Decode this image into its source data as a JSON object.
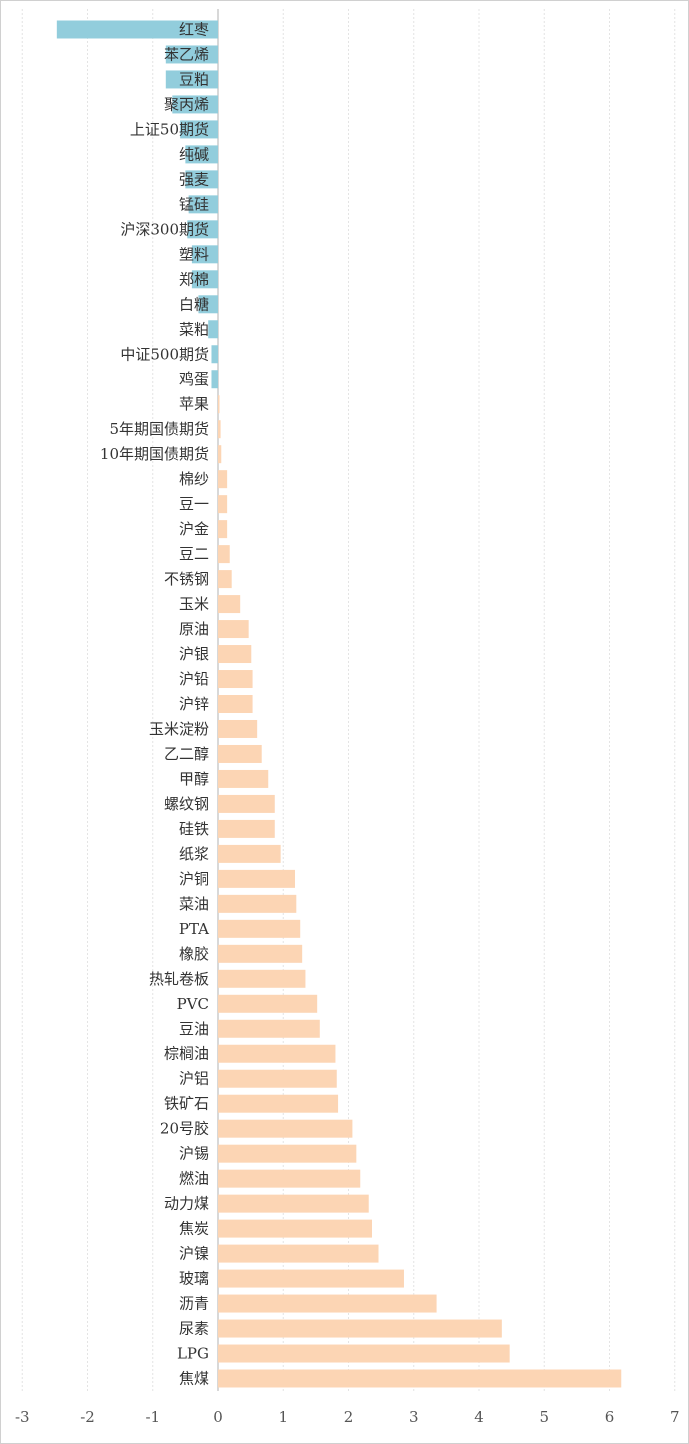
{
  "chart_data": {
    "type": "bar",
    "orientation": "horizontal",
    "categories": [
      "红枣",
      "苯乙烯",
      "豆粕",
      "聚丙烯",
      "上证50期货",
      "纯碱",
      "强麦",
      "锰硅",
      "沪深300期货",
      "塑料",
      "郑棉",
      "白糖",
      "菜粕",
      "中证500期货",
      "鸡蛋",
      "苹果",
      "5年期国债期货",
      "10年期国债期货",
      "棉纱",
      "豆一",
      "沪金",
      "豆二",
      "不锈钢",
      "玉米",
      "原油",
      "沪银",
      "沪铅",
      "沪锌",
      "玉米淀粉",
      "乙二醇",
      "甲醇",
      "螺纹钢",
      "硅铁",
      "纸浆",
      "沪铜",
      "菜油",
      "PTA",
      "橡胶",
      "热轧卷板",
      "PVC",
      "豆油",
      "棕榈油",
      "沪铝",
      "铁矿石",
      "20号胶",
      "沪锡",
      "燃油",
      "动力煤",
      "焦炭",
      "沪镍",
      "玻璃",
      "沥青",
      "尿素",
      "LPG",
      "焦煤"
    ],
    "values": [
      -2.47,
      -0.8,
      -0.8,
      -0.7,
      -0.58,
      -0.5,
      -0.5,
      -0.45,
      -0.47,
      -0.4,
      -0.4,
      -0.3,
      -0.15,
      -0.1,
      -0.1,
      0.02,
      0.04,
      0.05,
      0.14,
      0.14,
      0.14,
      0.18,
      0.21,
      0.34,
      0.47,
      0.51,
      0.53,
      0.53,
      0.6,
      0.67,
      0.77,
      0.87,
      0.87,
      0.96,
      1.18,
      1.2,
      1.26,
      1.29,
      1.34,
      1.52,
      1.56,
      1.8,
      1.82,
      1.84,
      2.06,
      2.12,
      2.18,
      2.31,
      2.36,
      2.46,
      2.85,
      3.35,
      4.35,
      4.47,
      6.18
    ],
    "xlim": [
      -3,
      7
    ],
    "xticks": [
      "-3",
      "-2",
      "-1",
      "0",
      "1",
      "2",
      "3",
      "4",
      "5",
      "6",
      "7"
    ],
    "grid": true,
    "colors": {
      "negative": "#92cddc",
      "positive": "#fcd5b4",
      "grid": "#e4e4e4",
      "axis": "#bfbfbf"
    }
  }
}
